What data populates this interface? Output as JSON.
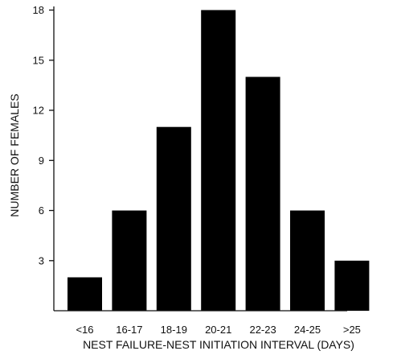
{
  "chart_data": {
    "type": "bar",
    "categories": [
      "<16",
      "16-17",
      "18-19",
      "20-21",
      "22-23",
      "24-25",
      ">25"
    ],
    "values": [
      2,
      6,
      11,
      18,
      14,
      6,
      3
    ],
    "title": "",
    "xlabel": "NEST FAILURE-NEST INITIATION INTERVAL (DAYS)",
    "ylabel": "NUMBER OF FEMALES",
    "ylim": [
      0,
      18
    ],
    "yticks": [
      3,
      6,
      9,
      12,
      15,
      18
    ],
    "grid": false,
    "colors": {
      "bar": "#000000",
      "axis": "#111111"
    }
  }
}
